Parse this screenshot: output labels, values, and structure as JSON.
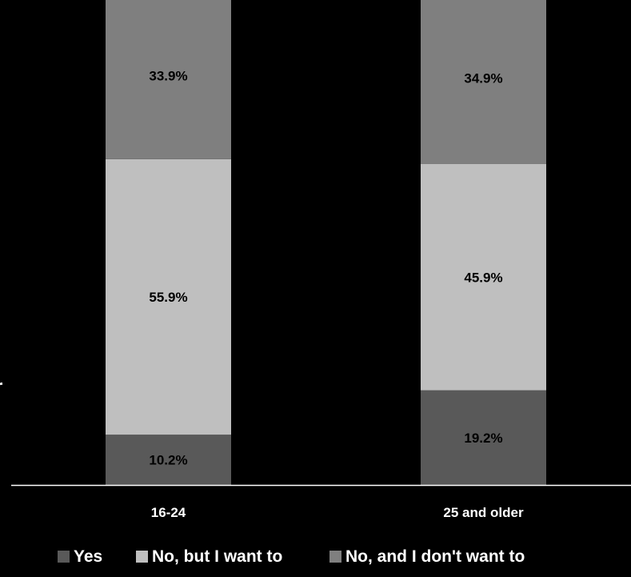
{
  "chart_data": {
    "type": "bar",
    "stacked": true,
    "orientation": "vertical",
    "normalized_percent": true,
    "categories": [
      "16-24",
      "25 and older"
    ],
    "series": [
      {
        "name": "Yes",
        "values": [
          10.2,
          19.2
        ],
        "labels": [
          "10.2%",
          "19.2%"
        ],
        "color": "#595959"
      },
      {
        "name": "No, but I want to",
        "values": [
          55.9,
          45.9
        ],
        "labels": [
          "55.9%",
          "45.9%"
        ],
        "color": "#bfbfbf"
      },
      {
        "name": "No, and I don't want to",
        "values": [
          33.9,
          34.9
        ],
        "labels": [
          "33.9%",
          "34.9%"
        ],
        "color": "#7f7f7f"
      }
    ],
    "legend_position": "bottom",
    "grid": false,
    "title": "",
    "xlabel": "",
    "ylabel": "",
    "background": "#000000",
    "axis_color": "#ffffff",
    "text_color": "#ffffff",
    "data_label_color": "#000000"
  },
  "stray_text": "r"
}
